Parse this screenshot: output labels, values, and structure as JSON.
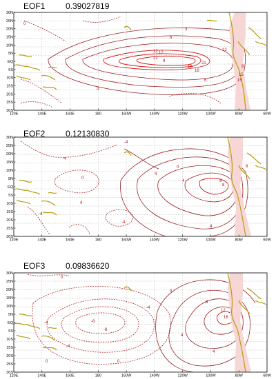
{
  "panels": [
    {
      "title": "EOF1",
      "variance": "0.39027819",
      "contour_labels": [
        "12",
        "12",
        "21",
        "21",
        "18",
        "18",
        "15",
        "6",
        "6",
        "3",
        "3",
        "9",
        "9",
        "15",
        "12",
        "0"
      ]
    },
    {
      "title": "EOF2",
      "variance": "0.12130830",
      "contour_labels": [
        "4",
        "4",
        "4",
        "0",
        "-4",
        "-4",
        "0",
        "4",
        "4",
        "8",
        "8",
        "8",
        "-4"
      ]
    },
    {
      "title": "EOF3",
      "variance": "0.09836620",
      "contour_labels": [
        "0",
        "0",
        "-8",
        "-8",
        "-4",
        "-4",
        "4",
        "8",
        "12",
        "16",
        "0",
        "0",
        "-4",
        "4"
      ]
    }
  ],
  "axes": {
    "lat_ticks": [
      "30N",
      "25N",
      "20N",
      "15N",
      "10N",
      "5N",
      "EQ",
      "5S",
      "10S",
      "15S",
      "20S",
      "25S",
      "30S"
    ],
    "lon_ticks": [
      "120E",
      "140E",
      "160E",
      "180",
      "160W",
      "140W",
      "120W",
      "100W",
      "80W",
      "60W"
    ]
  },
  "colors": {
    "positive_contour": "#9a1f1f",
    "high_contour": "#d01c1c",
    "negative_contour": "#b02525",
    "coastline": "#b8a21a",
    "coast_shade": "#f7d6d6"
  }
}
